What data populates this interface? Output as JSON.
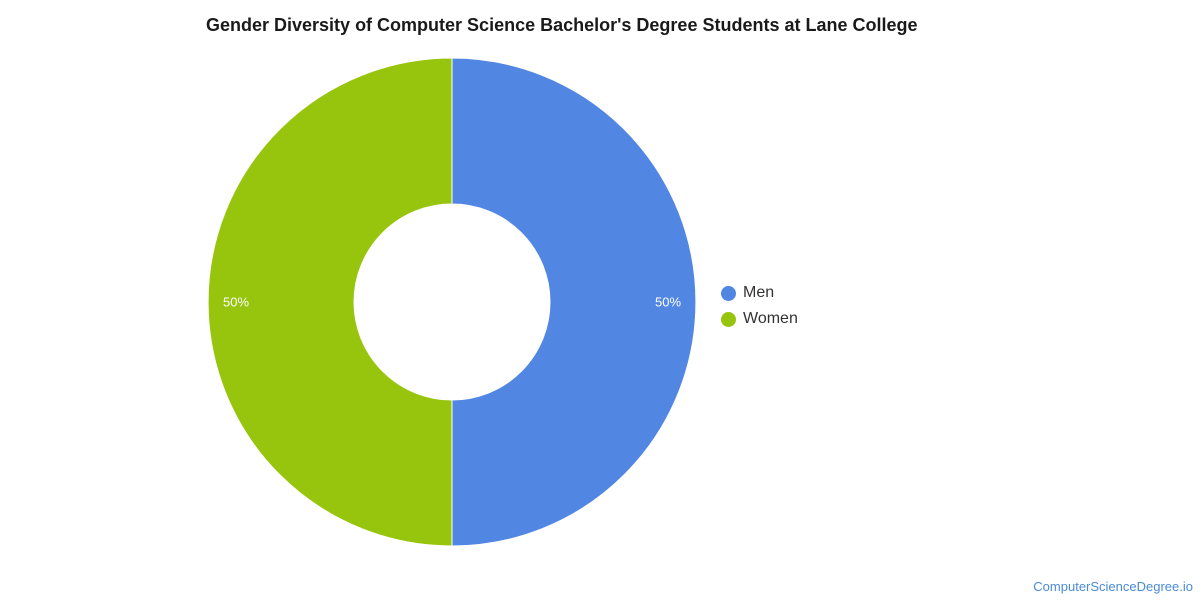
{
  "chart_data": {
    "type": "pie",
    "style": "donut",
    "title": "Gender Diversity of Computer Science Bachelor's Degree Students at Lane College",
    "categories": [
      "Men",
      "Women"
    ],
    "values": [
      50,
      50
    ],
    "data_labels": [
      "50%",
      "50%"
    ],
    "colors": [
      "#5286e3",
      "#97c40c"
    ],
    "legend": {
      "placement": "right",
      "entries": [
        "Men",
        "Women"
      ]
    }
  },
  "footer": {
    "source": "ComputerScienceDegree.io"
  }
}
